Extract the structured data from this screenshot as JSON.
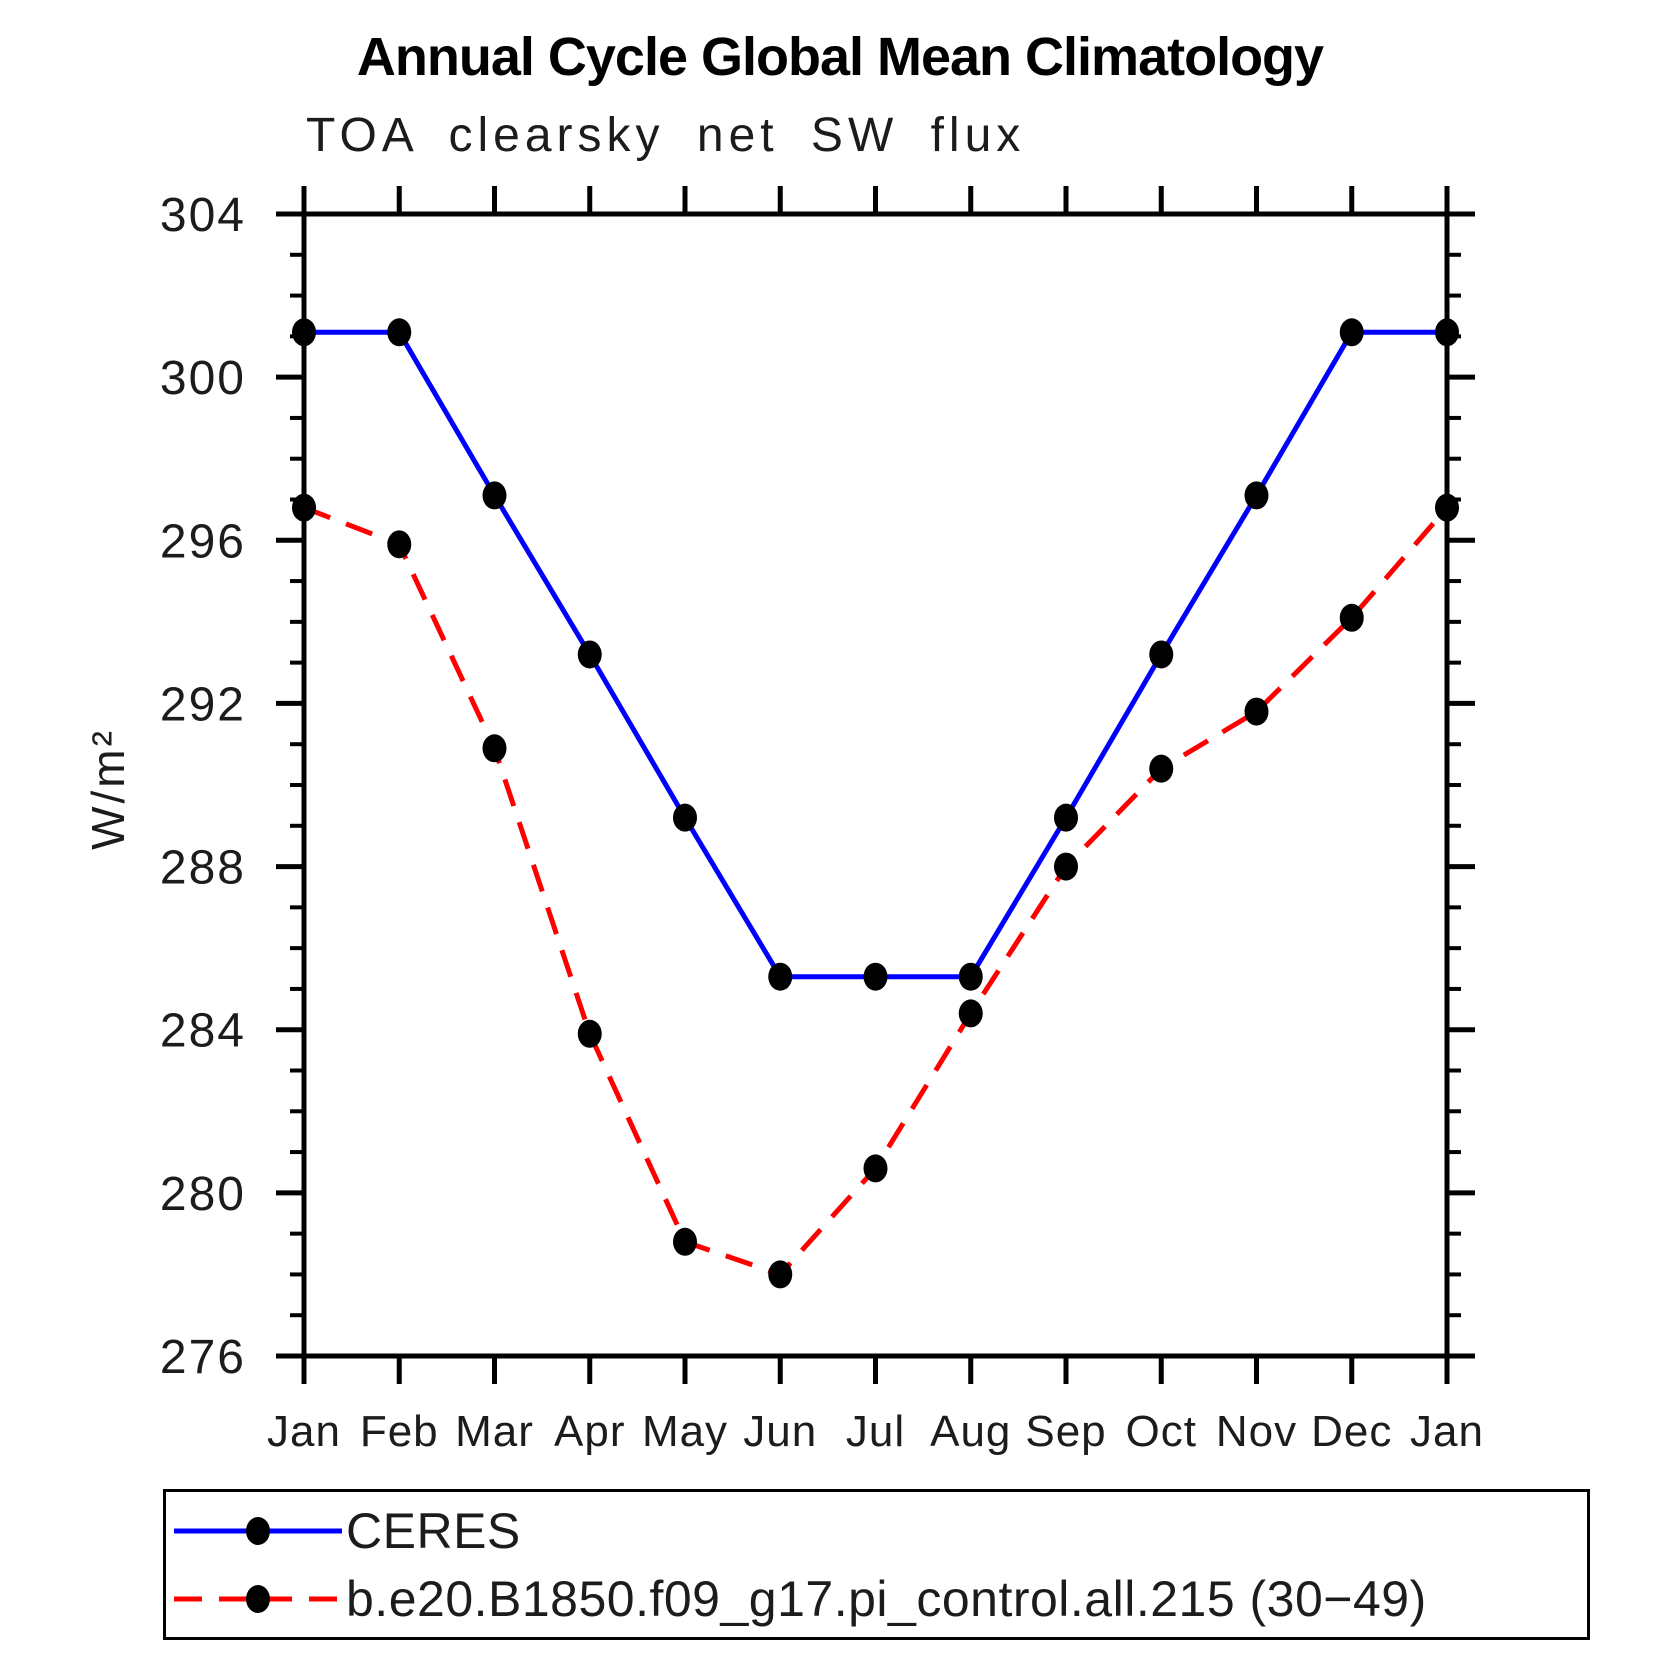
{
  "chart_data": {
    "type": "line",
    "title": "Annual Cycle Global Mean Climatology",
    "subtitle": "TOA clearsky net SW flux",
    "ylabel": "W/m²",
    "xlabel": "",
    "categories": [
      "Jan",
      "Feb",
      "Mar",
      "Apr",
      "May",
      "Jun",
      "Jul",
      "Aug",
      "Sep",
      "Oct",
      "Nov",
      "Dec",
      "Jan"
    ],
    "ylim": [
      276,
      304
    ],
    "ytick_major_step": 4,
    "ytick_minor_step": 1,
    "ytick_labels": [
      "276",
      "280",
      "284",
      "288",
      "292",
      "296",
      "300",
      "304"
    ],
    "grid": false,
    "legend_position": "bottom",
    "frame_color": "#000000",
    "marker_color": "#000000",
    "series": [
      {
        "name": "CERES",
        "color": "#0000ff",
        "line_style": "solid",
        "marker": "filled-circle",
        "values": [
          301.1,
          301.1,
          297.1,
          293.2,
          289.2,
          285.3,
          285.3,
          285.3,
          289.2,
          293.2,
          297.1,
          301.1,
          301.1
        ]
      },
      {
        "name": "b.e20.B1850.f09_g17.pi_control.all.215 (30−49)",
        "color": "#ff0000",
        "line_style": "dashed",
        "marker": "filled-circle",
        "values": [
          296.8,
          295.9,
          290.9,
          283.9,
          278.8,
          278.0,
          280.6,
          284.4,
          288.0,
          290.4,
          291.8,
          294.1,
          296.8
        ]
      }
    ]
  }
}
